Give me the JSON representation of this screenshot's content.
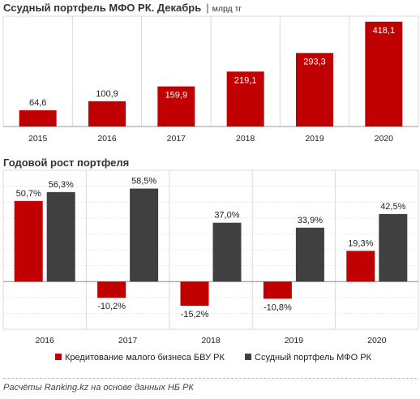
{
  "charts": {
    "top": {
      "title": "Ссудный портфель МФО РК. Декабрь",
      "separator": "|",
      "unit": "млрд тг"
    },
    "bottom": {
      "title": "Годовой рост портфеля"
    }
  },
  "footer": "Расчёты Ranking.kz на основе данных НБ РК",
  "colors": {
    "red": "#c00000",
    "dark": "#404040",
    "grid": "#d9d9d9"
  },
  "chart_data": [
    {
      "type": "bar",
      "title": "Ссудный портфель МФО РК. Декабрь",
      "unit": "млрд тг",
      "categories": [
        "2015",
        "2016",
        "2017",
        "2018",
        "2019",
        "2020"
      ],
      "values": [
        64.6,
        100.9,
        159.9,
        219.1,
        293.3,
        418.1
      ],
      "value_labels": [
        "64,6",
        "100,9",
        "159,9",
        "219,1",
        "293,3",
        "418,1"
      ],
      "ylim": [
        0,
        440
      ]
    },
    {
      "type": "bar",
      "title": "Годовой рост портфеля",
      "categories": [
        "2016",
        "2017",
        "2018",
        "2019",
        "2020"
      ],
      "ylim": [
        -30,
        70
      ],
      "legend_position": "bottom",
      "series": [
        {
          "name": "Кредитование малого бизнеса БВУ РК",
          "values": [
            50.7,
            -10.2,
            -15.2,
            -10.8,
            19.3
          ],
          "value_labels": [
            "50,7%",
            "-10,2%",
            "-15,2%",
            "-10,8%",
            "19,3%"
          ]
        },
        {
          "name": "Ссудный портфель МФО РК",
          "values": [
            56.3,
            58.5,
            37.0,
            33.9,
            42.5
          ],
          "value_labels": [
            "56,3%",
            "58,5%",
            "37,0%",
            "33,9%",
            "42,5%"
          ]
        }
      ]
    }
  ]
}
